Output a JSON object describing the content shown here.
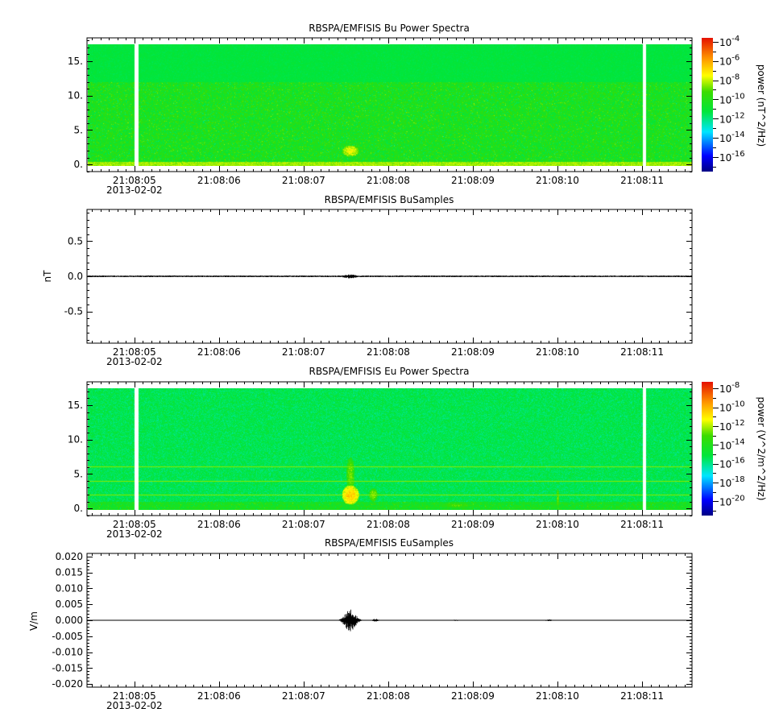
{
  "chart_data": [
    {
      "type": "heatmap",
      "title": "RBSPA/EMFISIS  Bu Power Spectra",
      "xlabel": "",
      "ylabel": "",
      "x_range": [
        "21:08:04.44",
        "21:08:11.59"
      ],
      "x_ticks": [
        "21:08:05",
        "21:08:06",
        "21:08:07",
        "21:08:08",
        "21:08:09",
        "21:08:10",
        "21:08:11"
      ],
      "date_label": "2013-02-02",
      "ylim": [
        -1.05,
        18.4
      ],
      "y_ticks": [
        "0.",
        "5.",
        "10.",
        "15."
      ],
      "y_tick_values": [
        0,
        5,
        10,
        15
      ],
      "data_top": 17.5,
      "background_log_power_low_band": -10.3,
      "background_log_power_high_band": -11.2,
      "band_edge": 12,
      "gaps_sec": [
        5.02,
        11.02
      ],
      "features": [
        {
          "t": 7.55,
          "f": 2.0,
          "log_power": -7.5,
          "dt": 0.1,
          "df": 0.8
        }
      ],
      "colorbar": {
        "label": "power (nT^2/Hz)",
        "log_range": [
          -17.5,
          -3.6
        ],
        "ticks": [
          "-4",
          "-6",
          "-8",
          "-10",
          "-12",
          "-14",
          "-16"
        ],
        "tick_values": [
          -4,
          -6,
          -8,
          -10,
          -12,
          -14,
          -16
        ],
        "base": "10"
      }
    },
    {
      "type": "line",
      "title": "RBSPA/EMFISIS  BuSamples",
      "ylabel": "nT",
      "ylim": [
        -0.95,
        0.95
      ],
      "y_ticks": [
        "-0.5",
        "0.0",
        "0.5"
      ],
      "y_tick_values": [
        -0.5,
        0,
        0.5
      ],
      "x_ticks": [
        "21:08:05",
        "21:08:06",
        "21:08:07",
        "21:08:08",
        "21:08:09",
        "21:08:10",
        "21:08:11"
      ],
      "date_label": "2013-02-02",
      "noise_amplitude": 0.012,
      "bursts": [
        {
          "t": 7.55,
          "amplitude": 0.03,
          "width": 0.1
        }
      ]
    },
    {
      "type": "heatmap",
      "title": "RBSPA/EMFISIS  Eu Power Spectra",
      "ylim": [
        -1.05,
        18.4
      ],
      "y_ticks": [
        "0.",
        "5.",
        "10.",
        "15."
      ],
      "y_tick_values": [
        0,
        5,
        10,
        15
      ],
      "x_ticks": [
        "21:08:05",
        "21:08:06",
        "21:08:07",
        "21:08:08",
        "21:08:09",
        "21:08:10",
        "21:08:11"
      ],
      "date_label": "2013-02-02",
      "data_top": 17.5,
      "background_log_power": -15.3,
      "gaps_sec": [
        5.02,
        11.02
      ],
      "lines_freq": [
        2.0,
        4.0,
        6.1
      ],
      "features": [
        {
          "t": 7.55,
          "f": 2.0,
          "log_power": -10.5,
          "dt": 0.1,
          "df": 1.4
        },
        {
          "t": 7.55,
          "f": 5.0,
          "log_power": -12.5,
          "dt": 0.05,
          "df": 2.5
        },
        {
          "t": 7.82,
          "f": 2.0,
          "log_power": -12.3,
          "dt": 0.05,
          "df": 1.0
        },
        {
          "t": 8.8,
          "f": 0.5,
          "log_power": -13.0,
          "dt": 0.2,
          "df": 0.4
        },
        {
          "t": 10.0,
          "f": 1.5,
          "log_power": -12.5,
          "dt": 0.015,
          "df": 1.5
        }
      ],
      "colorbar": {
        "label": "power (V^2/m^2/Hz)",
        "log_range": [
          -21.5,
          -7.3
        ],
        "ticks": [
          "-8",
          "-10",
          "-12",
          "-14",
          "-16",
          "-18",
          "-20"
        ],
        "tick_values": [
          -8,
          -10,
          -12,
          -14,
          -16,
          -18,
          -20
        ],
        "base": "10"
      }
    },
    {
      "type": "line",
      "title": "RBSPA/EMFISIS  EuSamples",
      "ylabel": "V/m",
      "ylim": [
        -0.021,
        0.021
      ],
      "y_ticks": [
        "-0.020",
        "-0.015",
        "-0.010",
        "-0.005",
        "0.000",
        "0.005",
        "0.010",
        "0.015",
        "0.020"
      ],
      "y_tick_values": [
        -0.02,
        -0.015,
        -0.01,
        -0.005,
        0,
        0.005,
        0.01,
        0.015,
        0.02
      ],
      "x_ticks": [
        "21:08:05",
        "21:08:06",
        "21:08:07",
        "21:08:08",
        "21:08:09",
        "21:08:10",
        "21:08:11"
      ],
      "date_label": "2013-02-02",
      "noise_amplitude": 5e-05,
      "bursts": [
        {
          "t": 7.55,
          "amplitude": 0.0035,
          "width": 0.08
        },
        {
          "t": 7.85,
          "amplitude": 0.0005,
          "width": 0.04
        },
        {
          "t": 8.8,
          "amplitude": 0.0002,
          "width": 0.05
        },
        {
          "t": 9.9,
          "amplitude": 0.0003,
          "width": 0.05
        }
      ]
    }
  ]
}
